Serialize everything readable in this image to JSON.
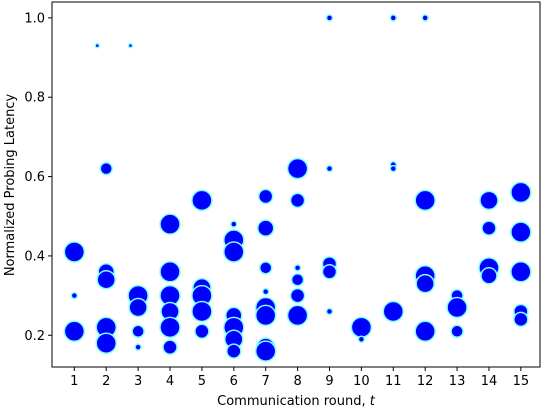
{
  "chart_data": {
    "type": "bubble",
    "xlabel": "Communication round,",
    "xlabel_var": "t",
    "ylabel": "Normalized Probing Latency",
    "xlim": [
      0.3,
      15.6
    ],
    "ylim": [
      0.12,
      1.04
    ],
    "xticks": [
      1,
      2,
      3,
      4,
      5,
      6,
      7,
      8,
      9,
      10,
      11,
      12,
      13,
      14,
      15
    ],
    "yticks": [
      0.2,
      0.4,
      0.6,
      0.8,
      {
        "value": 1,
        "label": "1.0"
      }
    ],
    "series": [
      {
        "color": "#0000ff",
        "edge_color": "#7fffff",
        "x": [
          1,
          1,
          1,
          2,
          2,
          2,
          2,
          2,
          3,
          3,
          3,
          3,
          4,
          4,
          4,
          4,
          4,
          4,
          5,
          5,
          5,
          5,
          5,
          6,
          6,
          6,
          6,
          6,
          6,
          6,
          7,
          7,
          7,
          7,
          7,
          7,
          7,
          7,
          8,
          8,
          8,
          8,
          8,
          8,
          9,
          9,
          9,
          9,
          9,
          10,
          10,
          11,
          11,
          11,
          11,
          12,
          12,
          12,
          12,
          12,
          13,
          13,
          13,
          14,
          14,
          14,
          14,
          15,
          15,
          15,
          15,
          15,
          1.72,
          2.76
        ],
        "values": [
          0.41,
          0.3,
          0.21,
          0.62,
          0.36,
          0.34,
          0.22,
          0.18,
          0.3,
          0.27,
          0.21,
          0.17,
          0.48,
          0.36,
          0.3,
          0.26,
          0.22,
          0.17,
          0.54,
          0.32,
          0.3,
          0.26,
          0.21,
          0.48,
          0.44,
          0.41,
          0.25,
          0.22,
          0.19,
          0.16,
          0.55,
          0.47,
          0.37,
          0.31,
          0.27,
          0.25,
          0.17,
          0.16,
          0.62,
          0.54,
          0.37,
          0.34,
          0.3,
          0.25,
          1.0,
          0.62,
          0.38,
          0.36,
          0.26,
          0.22,
          0.19,
          1.0,
          0.63,
          0.62,
          0.26,
          1.0,
          0.54,
          0.35,
          0.33,
          0.21,
          0.3,
          0.27,
          0.21,
          0.54,
          0.47,
          0.37,
          0.35,
          0.56,
          0.46,
          0.36,
          0.26,
          0.24,
          0.93,
          0.93
        ],
        "sizes": [
          10,
          3,
          10,
          6,
          8,
          9,
          10,
          10,
          10,
          9,
          6,
          3,
          10,
          10,
          10,
          9,
          10,
          7,
          10,
          9,
          10,
          10,
          7,
          3,
          10,
          10,
          8,
          10,
          9,
          7,
          7,
          8,
          6,
          3,
          10,
          10,
          9,
          10,
          10,
          7,
          3,
          6,
          7,
          10,
          3,
          3,
          7,
          7,
          3,
          10,
          3,
          3,
          3,
          3,
          10,
          3,
          10,
          10,
          9,
          10,
          6,
          10,
          6,
          9,
          7,
          10,
          8,
          10,
          10,
          10,
          7,
          7,
          2,
          2
        ]
      }
    ]
  }
}
